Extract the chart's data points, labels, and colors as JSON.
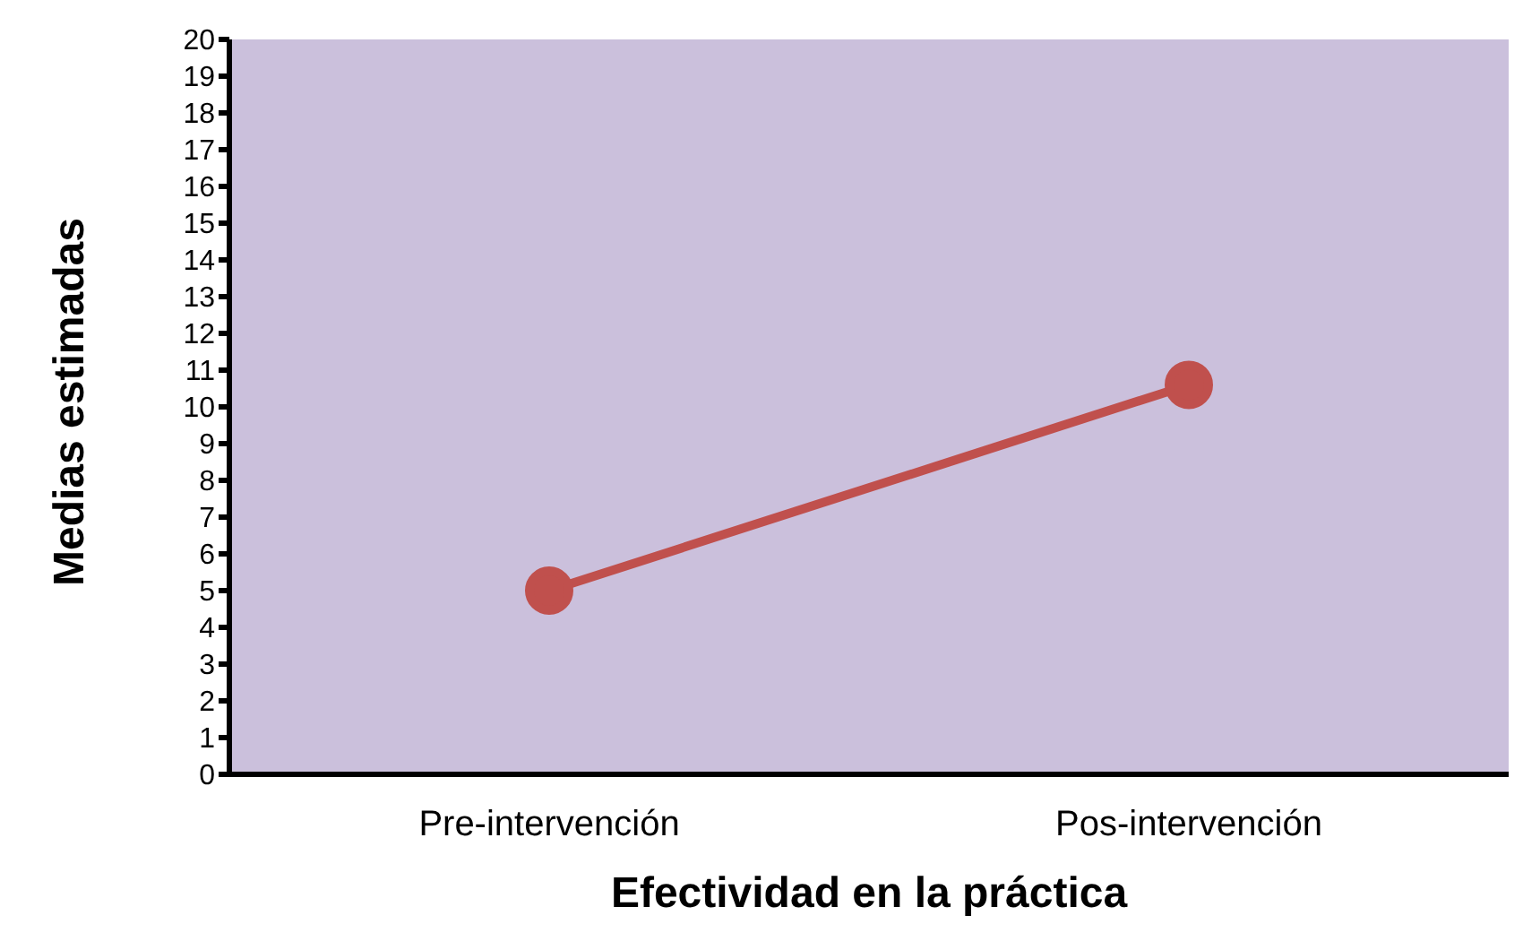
{
  "chart_data": {
    "type": "line",
    "xlabel": "Efectividad en la práctica",
    "ylabel": "Medias estimadas",
    "categories": [
      "Pre-intervención",
      "Pos-intervención"
    ],
    "series": [
      {
        "color": "#c0504d",
        "values": [
          5.0,
          10.6
        ]
      }
    ],
    "ylim": [
      0,
      20
    ],
    "yticks": [
      0,
      1,
      2,
      3,
      4,
      5,
      6,
      7,
      8,
      9,
      10,
      11,
      12,
      13,
      14,
      15,
      16,
      17,
      18,
      19,
      20
    ],
    "grid": false,
    "legend": false,
    "marker": "circle",
    "line_style": "solid"
  }
}
